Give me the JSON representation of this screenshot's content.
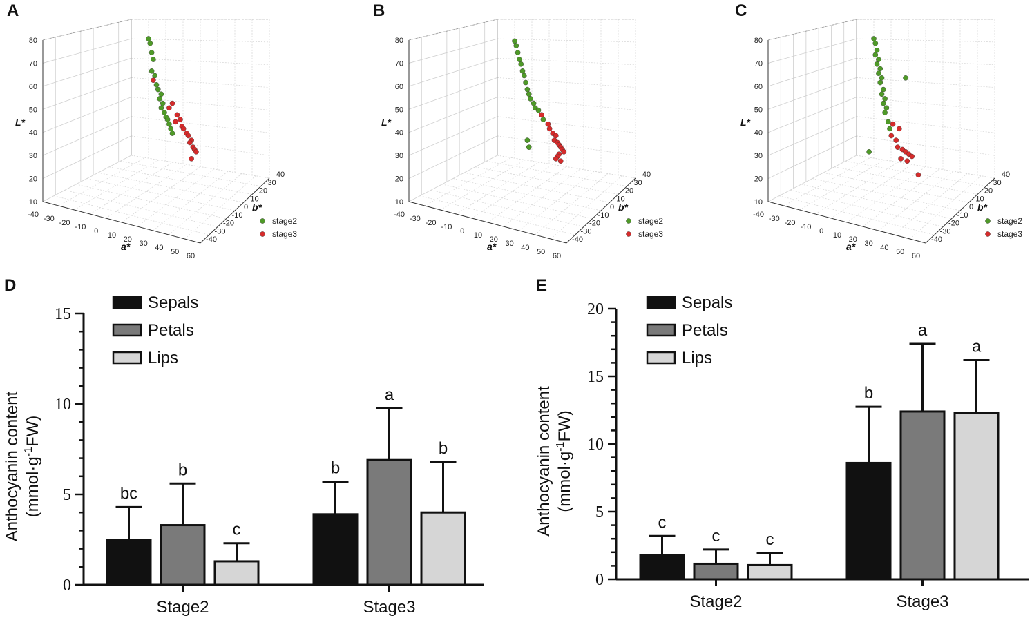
{
  "panels": {
    "A": {
      "label": "A"
    },
    "B": {
      "label": "B"
    },
    "C": {
      "label": "C"
    },
    "D": {
      "label": "D"
    },
    "E": {
      "label": "E"
    }
  },
  "colors": {
    "stage2": "#4f9a28",
    "stage3": "#d62b2b",
    "sepals": "#111111",
    "petals": "#7a7a7a",
    "lips": "#d6d6d6"
  },
  "chart_data": [
    {
      "id": "A",
      "type": "scatter",
      "xlabel": "a*",
      "ylabel": "L*",
      "zlabel": "b*",
      "x_ticks": [
        "-40",
        "-30",
        "-20",
        "-10",
        "0",
        "10",
        "20",
        "30",
        "40",
        "50",
        "60"
      ],
      "y_ticks": [
        "10",
        "20",
        "30",
        "40",
        "50",
        "60",
        "70",
        "80"
      ],
      "z_ticks": [
        "-40",
        "-30",
        "-20",
        "-10",
        "0",
        "10",
        "20",
        "30",
        "40"
      ],
      "legend": [
        "stage2",
        "stage3"
      ],
      "series": [
        {
          "name": "stage2",
          "L": [
            77,
            75,
            71,
            68,
            63,
            61,
            57,
            55,
            53,
            51,
            49,
            47,
            45,
            43,
            42,
            40,
            38,
            36
          ],
          "a": [
            0,
            1,
            2,
            3,
            2,
            4,
            5,
            6,
            8,
            7,
            9,
            8,
            10,
            11,
            12,
            13,
            14,
            15
          ]
        },
        {
          "name": "stage3",
          "L": [
            59,
            49,
            47,
            44,
            42,
            41,
            39,
            38,
            36,
            35,
            33,
            32,
            30,
            29,
            28,
            25
          ],
          "a": [
            3,
            15,
            13,
            18,
            20,
            17,
            21,
            22,
            24,
            25,
            27,
            26,
            28,
            29,
            30,
            27
          ]
        }
      ]
    },
    {
      "id": "B",
      "type": "scatter",
      "xlabel": "a*",
      "ylabel": "L*",
      "zlabel": "b*",
      "x_ticks": [
        "-40",
        "-30",
        "-20",
        "-10",
        "0",
        "10",
        "20",
        "30",
        "40",
        "50",
        "60"
      ],
      "y_ticks": [
        "10",
        "20",
        "30",
        "40",
        "50",
        "60",
        "70",
        "80"
      ],
      "z_ticks": [
        "-40",
        "-30",
        "-20",
        "-10",
        "0",
        "10",
        "20",
        "30",
        "40"
      ],
      "legend": [
        "stage2",
        "stage3"
      ],
      "series": [
        {
          "name": "stage2",
          "L": [
            76,
            74,
            71,
            68,
            66,
            63,
            61,
            58,
            55,
            53,
            51,
            49,
            47,
            46,
            44,
            42,
            33,
            30
          ],
          "a": [
            0,
            1,
            2,
            3,
            4,
            5,
            6,
            7,
            8,
            9,
            10,
            12,
            13,
            15,
            17,
            18,
            8,
            9
          ]
        },
        {
          "name": "stage3",
          "L": [
            44,
            40,
            38,
            36,
            35,
            33,
            32,
            31,
            30,
            29,
            28,
            27,
            26,
            25,
            24
          ],
          "a": [
            17,
            21,
            22,
            24,
            26,
            25,
            27,
            28,
            29,
            30,
            31,
            28,
            27,
            26,
            29
          ]
        }
      ]
    },
    {
      "id": "C",
      "type": "scatter",
      "xlabel": "a*",
      "ylabel": "L*",
      "zlabel": "b*",
      "x_ticks": [
        "-40",
        "-30",
        "-20",
        "-10",
        "0",
        "10",
        "20",
        "30",
        "40",
        "50",
        "60"
      ],
      "y_ticks": [
        "10",
        "20",
        "30",
        "40",
        "50",
        "60",
        "70",
        "80"
      ],
      "z_ticks": [
        "-40",
        "-30",
        "-20",
        "-10",
        "0",
        "10",
        "20",
        "30",
        "40"
      ],
      "legend": [
        "stage2",
        "stage3"
      ],
      "series": [
        {
          "name": "stage2",
          "L": [
            77,
            75,
            72,
            70,
            68,
            66,
            64,
            62,
            60,
            58,
            55,
            53,
            51,
            49,
            47,
            45,
            41,
            38,
            60,
            28
          ],
          "a": [
            0,
            1,
            2,
            1,
            3,
            2,
            4,
            3,
            5,
            4,
            6,
            5,
            7,
            6,
            8,
            7,
            9,
            10,
            20,
            -3
          ],
          "b": [
            0,
            0,
            0,
            0,
            0,
            0,
            0,
            0,
            0,
            0,
            0,
            0,
            0,
            0,
            0,
            0,
            0,
            0,
            0,
            0
          ]
        },
        {
          "name": "stage3",
          "L": [
            40,
            38,
            35,
            33,
            30,
            29,
            28,
            27,
            26,
            25,
            24,
            18
          ],
          "a": [
            12,
            16,
            11,
            14,
            15,
            18,
            20,
            22,
            24,
            17,
            21,
            28
          ]
        }
      ]
    },
    {
      "id": "D",
      "type": "bar",
      "title": "",
      "xlabel": "",
      "ylabel_line1": "Anthocyanin content",
      "ylabel_line2": "(mmol·g",
      "ylabel_sup": "-1",
      "ylabel_line2b": "FW)",
      "ylim": [
        0,
        15
      ],
      "y_ticks": [
        "0",
        "5",
        "10",
        "15"
      ],
      "categories": [
        "Stage2",
        "Stage3"
      ],
      "series": [
        {
          "name": "Sepals",
          "values": [
            2.5,
            3.9
          ],
          "errors": [
            1.8,
            1.8
          ],
          "letters": [
            "bc",
            "b"
          ]
        },
        {
          "name": "Petals",
          "values": [
            3.3,
            6.9
          ],
          "errors": [
            2.3,
            2.85
          ],
          "letters": [
            "b",
            "a"
          ]
        },
        {
          "name": "Lips",
          "values": [
            1.3,
            4.0
          ],
          "errors": [
            1.0,
            2.8
          ],
          "letters": [
            "c",
            "b"
          ]
        }
      ]
    },
    {
      "id": "E",
      "type": "bar",
      "title": "",
      "xlabel": "",
      "ylabel_line1": "Anthocyanin content",
      "ylabel_line2": "(mmol·g",
      "ylabel_sup": "-1",
      "ylabel_line2b": "FW)",
      "ylim": [
        0,
        20
      ],
      "y_ticks": [
        "0",
        "5",
        "10",
        "15",
        "20"
      ],
      "categories": [
        "Stage2",
        "Stage3"
      ],
      "series": [
        {
          "name": "Sepals",
          "values": [
            1.8,
            8.6
          ],
          "errors": [
            1.4,
            4.15
          ],
          "letters": [
            "c",
            "b"
          ]
        },
        {
          "name": "Petals",
          "values": [
            1.15,
            12.4
          ],
          "errors": [
            1.05,
            5.0
          ],
          "letters": [
            "c",
            "a"
          ]
        },
        {
          "name": "Lips",
          "values": [
            1.05,
            12.3
          ],
          "errors": [
            0.9,
            3.9
          ],
          "letters": [
            "c",
            "a"
          ]
        }
      ]
    }
  ]
}
